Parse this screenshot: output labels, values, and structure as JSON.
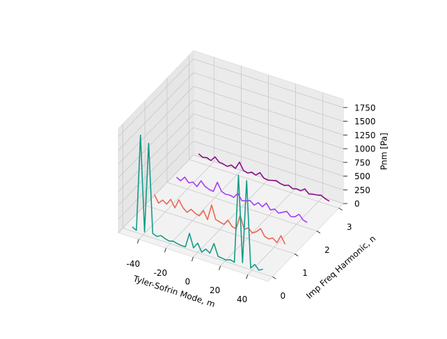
{
  "chart_data": {
    "type": "line3d",
    "x_label": "Tyler-Sofrin Mode, m",
    "y_label": "Imp Freq Harmonic, n",
    "z_label": "Pnm [Pa]",
    "x": [
      -48,
      -45,
      -42,
      -39,
      -36,
      -33,
      -30,
      -27,
      -24,
      -21,
      -18,
      -15,
      -12,
      -9,
      -6,
      -3,
      0,
      3,
      6,
      9,
      12,
      15,
      18,
      21,
      24,
      27,
      30,
      33,
      36,
      39,
      42,
      45,
      48
    ],
    "xlim": [
      -55,
      55
    ],
    "xticks": [
      -40,
      -20,
      0,
      20,
      40
    ],
    "ylim": [
      -0.2,
      3.2
    ],
    "yticks": [
      0,
      1,
      2,
      3
    ],
    "zlim": [
      0,
      1900
    ],
    "zticks": [
      0,
      250,
      500,
      750,
      1000,
      1250,
      1500,
      1750
    ],
    "grid": true,
    "series": [
      {
        "y": 0,
        "color": "#149a88",
        "values": [
          80,
          40,
          1800,
          60,
          1700,
          80,
          50,
          90,
          60,
          40,
          60,
          40,
          30,
          30,
          300,
          60,
          170,
          30,
          110,
          60,
          260,
          50,
          40,
          30,
          60,
          40,
          1650,
          80,
          1600,
          30,
          120,
          40,
          80
        ]
      },
      {
        "y": 1,
        "color": "#ee6452",
        "values": [
          250,
          120,
          200,
          150,
          260,
          130,
          300,
          180,
          120,
          200,
          150,
          130,
          250,
          110,
          400,
          160,
          140,
          120,
          220,
          130,
          110,
          380,
          150,
          200,
          130,
          180,
          260,
          140,
          120,
          160,
          100,
          250,
          120
        ]
      },
      {
        "y": 2,
        "color": "#a63cf5",
        "values": [
          150,
          110,
          200,
          120,
          160,
          100,
          230,
          150,
          120,
          110,
          300,
          160,
          130,
          140,
          120,
          220,
          110,
          130,
          160,
          100,
          170,
          120,
          210,
          110,
          150,
          100,
          140,
          180,
          110,
          130,
          200,
          120,
          100
        ]
      },
      {
        "y": 3,
        "color": "#8c0c8c",
        "values": [
          160,
          120,
          140,
          110,
          200,
          130,
          120,
          100,
          150,
          110,
          250,
          120,
          100,
          140,
          110,
          180,
          100,
          90,
          110,
          130,
          100,
          90,
          120,
          80,
          100,
          90,
          150,
          80,
          100,
          110,
          130,
          90,
          70
        ]
      }
    ]
  }
}
